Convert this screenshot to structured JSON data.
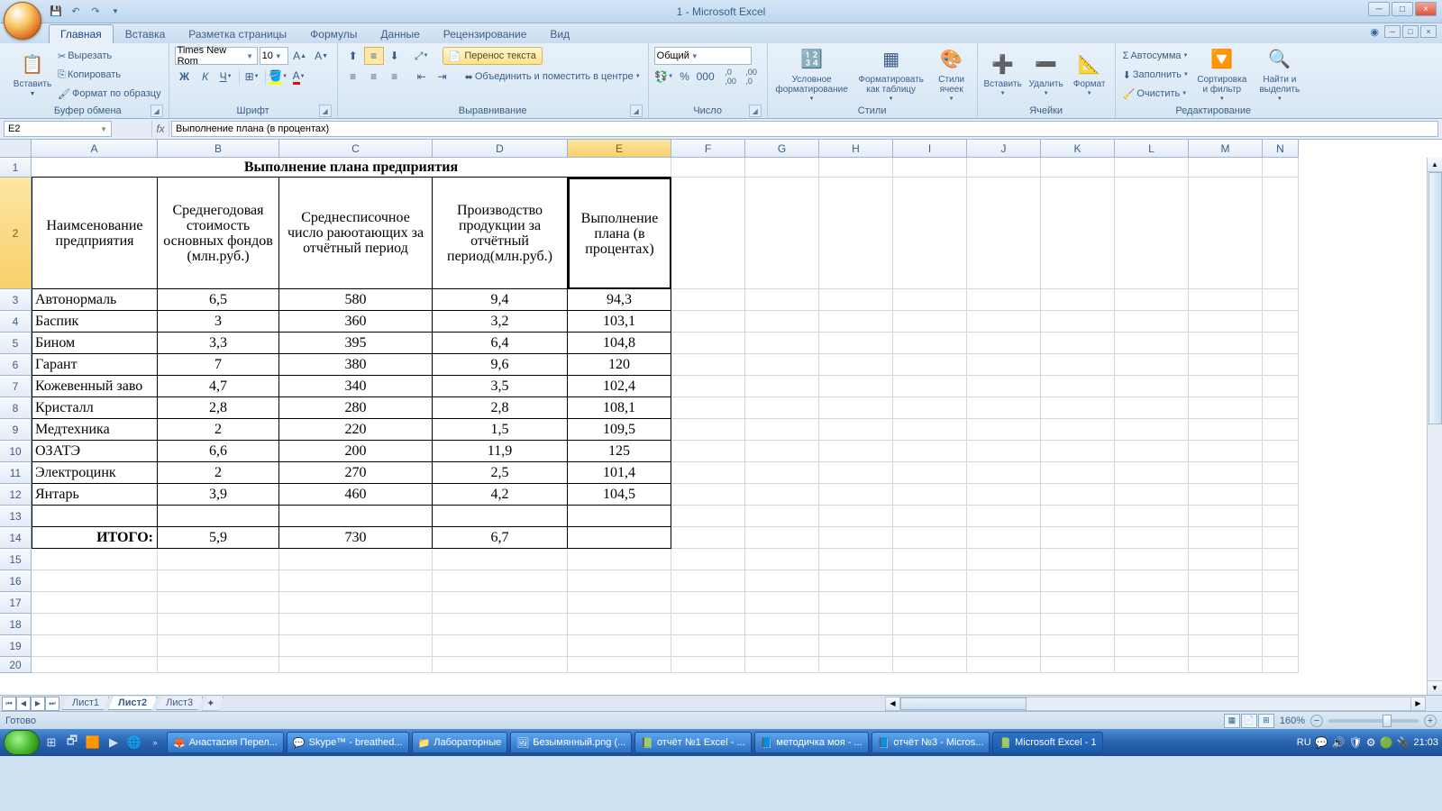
{
  "app": {
    "title": "1 - Microsoft Excel"
  },
  "tabs": [
    "Главная",
    "Вставка",
    "Разметка страницы",
    "Формулы",
    "Данные",
    "Рецензирование",
    "Вид"
  ],
  "active_tab": 0,
  "ribbon": {
    "clipboard": {
      "label": "Буфер обмена",
      "paste": "Вставить",
      "cut": "Вырезать",
      "copy": "Копировать",
      "format_painter": "Формат по образцу"
    },
    "font": {
      "label": "Шрифт",
      "name": "Times New Rom",
      "size": "10"
    },
    "alignment": {
      "label": "Выравнивание",
      "wrap": "Перенос текста",
      "merge": "Объединить и поместить в центре"
    },
    "number": {
      "label": "Число",
      "format": "Общий"
    },
    "styles": {
      "label": "Стили",
      "cond": "Условное форматирование",
      "table": "Форматировать как таблицу",
      "cell": "Стили ячеек"
    },
    "cells": {
      "label": "Ячейки",
      "insert": "Вставить",
      "delete": "Удалить",
      "format": "Формат"
    },
    "editing": {
      "label": "Редактирование",
      "sum": "Автосумма",
      "fill": "Заполнить",
      "clear": "Очистить",
      "sort": "Сортировка и фильтр",
      "find": "Найти и выделить"
    }
  },
  "namebox": "E2",
  "formula": "Выполнение плана (в процентах)",
  "columns": {
    "letters": [
      "A",
      "B",
      "C",
      "D",
      "E",
      "F",
      "G",
      "H",
      "I",
      "J",
      "K",
      "L",
      "M",
      "N"
    ],
    "widths": [
      140,
      135,
      170,
      150,
      115,
      82,
      82,
      82,
      82,
      82,
      82,
      82,
      82,
      40
    ],
    "active": 4
  },
  "rows": {
    "heights": [
      22,
      124,
      24,
      24,
      24,
      24,
      24,
      24,
      24,
      24,
      24,
      24,
      24,
      24,
      24,
      24,
      24,
      24,
      24,
      18
    ],
    "count": 20,
    "active": 1
  },
  "table": {
    "title": "Выполнение плана предприятия",
    "headers": [
      "Наимсенование предприятия",
      "Среднегодовая стоимость основных фондов (млн.руб.)",
      "Среднесписочное число раюотающих за отчётный период",
      "Производство продукции за отчётный период(млн.руб.)",
      "Выполнение плана (в процентах)"
    ],
    "rows": [
      [
        "Автонормаль",
        "6,5",
        "580",
        "9,4",
        "94,3"
      ],
      [
        "Баспик",
        "3",
        "360",
        "3,2",
        "103,1"
      ],
      [
        "Бином",
        "3,3",
        "395",
        "6,4",
        "104,8"
      ],
      [
        "Гарант",
        "7",
        "380",
        "9,6",
        "120"
      ],
      [
        "Кожевенный заво",
        "4,7",
        "340",
        "3,5",
        "102,4"
      ],
      [
        "Кристалл",
        "2,8",
        "280",
        "2,8",
        "108,1"
      ],
      [
        "Медтехника",
        "2",
        "220",
        "1,5",
        "109,5"
      ],
      [
        "ОЗАТЭ",
        "6,6",
        "200",
        "11,9",
        "125"
      ],
      [
        "Электроцинк",
        "2",
        "270",
        "2,5",
        "101,4"
      ],
      [
        "Янтарь",
        "3,9",
        "460",
        "4,2",
        "104,5"
      ]
    ],
    "total_label": "ИТОГО:",
    "totals": [
      "5,9",
      "730",
      "6,7",
      ""
    ]
  },
  "sheets": {
    "names": [
      "Лист1",
      "Лист2",
      "Лист3"
    ],
    "active": 1
  },
  "status": {
    "ready": "Готово",
    "zoom": "160%",
    "lang": "RU"
  },
  "taskbar": {
    "items": [
      {
        "icon": "🦊",
        "label": "Анастасия Перел..."
      },
      {
        "icon": "💬",
        "label": "Skype™ - breathed..."
      },
      {
        "icon": "📁",
        "label": "Лабораторные"
      },
      {
        "icon": "🖼",
        "label": "Безымянный.png (..."
      },
      {
        "icon": "📗",
        "label": "отчёт №1 Excel - ..."
      },
      {
        "icon": "📘",
        "label": "методичка моя - ..."
      },
      {
        "icon": "📘",
        "label": "отчёт №3 - Micros..."
      },
      {
        "icon": "📗",
        "label": "Microsoft Excel - 1",
        "active": true
      }
    ],
    "time": "21:03"
  }
}
